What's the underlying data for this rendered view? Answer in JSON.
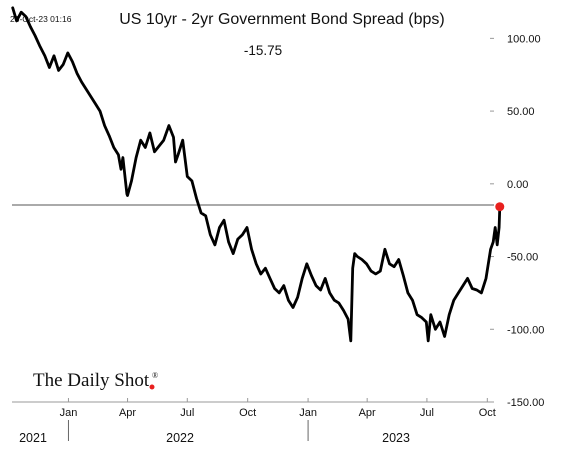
{
  "header": {
    "timestamp": "23-Oct-23 01:16",
    "title": "US 10yr - 2yr Government Bond Spread (bps)",
    "current_value": "-15.75"
  },
  "branding": {
    "logo_text": "The Daily Shot",
    "logo_mark": "®"
  },
  "colors": {
    "line": "#000000",
    "last_point": "#e8201e",
    "zero_line": "#555555",
    "axis": "#999999"
  },
  "chart_data": {
    "type": "line",
    "title": "US 10yr - 2yr Government Bond Spread (bps)",
    "ylim": [
      -150,
      125
    ],
    "y_ticks": [
      100,
      50,
      0,
      -50,
      -100,
      -150
    ],
    "y_tick_labels": [
      "100.00",
      "50.00",
      "0.00",
      "-50.00",
      "-100.00",
      "-150.00"
    ],
    "x_ticks": [
      {
        "label": "Jan",
        "date": "2022-01-01"
      },
      {
        "label": "Apr",
        "date": "2022-04-01"
      },
      {
        "label": "Jul",
        "date": "2022-07-01"
      },
      {
        "label": "Oct",
        "date": "2022-10-01"
      },
      {
        "label": "Jan",
        "date": "2023-01-01"
      },
      {
        "label": "Apr",
        "date": "2023-04-01"
      },
      {
        "label": "Jul",
        "date": "2023-07-01"
      },
      {
        "label": "Oct",
        "date": "2023-10-01"
      }
    ],
    "year_labels": [
      {
        "label": "2021",
        "date": "2021-11-08"
      },
      {
        "label": "2022",
        "date": "2022-06-20"
      },
      {
        "label": "2023",
        "date": "2023-05-15"
      }
    ],
    "year_separators": [
      "2022-01-01",
      "2023-01-01"
    ],
    "grid": false,
    "reference_line": 0,
    "series": [
      {
        "x": [
          "2021-10-08",
          "2021-10-14",
          "2021-10-21",
          "2021-10-28",
          "2021-11-04",
          "2021-11-11",
          "2021-11-18",
          "2021-11-26",
          "2021-12-03",
          "2021-12-10",
          "2021-12-17",
          "2021-12-24",
          "2021-12-31",
          "2022-01-07",
          "2022-01-14",
          "2022-01-21",
          "2022-01-28",
          "2022-02-04",
          "2022-02-11",
          "2022-02-18",
          "2022-02-25",
          "2022-03-04",
          "2022-03-11",
          "2022-03-18",
          "2022-03-22",
          "2022-03-25",
          "2022-03-31",
          "2022-04-01",
          "2022-04-07",
          "2022-04-14",
          "2022-04-21",
          "2022-04-28",
          "2022-05-05",
          "2022-05-12",
          "2022-05-19",
          "2022-05-26",
          "2022-06-03",
          "2022-06-10",
          "2022-06-13",
          "2022-06-17",
          "2022-06-24",
          "2022-07-01",
          "2022-07-08",
          "2022-07-15",
          "2022-07-22",
          "2022-07-29",
          "2022-08-05",
          "2022-08-12",
          "2022-08-19",
          "2022-08-26",
          "2022-09-02",
          "2022-09-09",
          "2022-09-16",
          "2022-09-23",
          "2022-09-30",
          "2022-10-07",
          "2022-10-14",
          "2022-10-21",
          "2022-10-28",
          "2022-11-04",
          "2022-11-11",
          "2022-11-18",
          "2022-11-25",
          "2022-12-02",
          "2022-12-09",
          "2022-12-16",
          "2022-12-23",
          "2022-12-30",
          "2023-01-06",
          "2023-01-13",
          "2023-01-20",
          "2023-01-27",
          "2023-02-03",
          "2023-02-10",
          "2023-02-17",
          "2023-02-24",
          "2023-03-03",
          "2023-03-07",
          "2023-03-10",
          "2023-03-13",
          "2023-03-17",
          "2023-03-24",
          "2023-03-31",
          "2023-04-07",
          "2023-04-14",
          "2023-04-21",
          "2023-04-28",
          "2023-05-05",
          "2023-05-12",
          "2023-05-19",
          "2023-05-26",
          "2023-06-02",
          "2023-06-09",
          "2023-06-16",
          "2023-06-23",
          "2023-06-30",
          "2023-07-03",
          "2023-07-07",
          "2023-07-14",
          "2023-07-21",
          "2023-07-28",
          "2023-08-04",
          "2023-08-11",
          "2023-08-18",
          "2023-08-25",
          "2023-09-01",
          "2023-09-08",
          "2023-09-15",
          "2023-09-22",
          "2023-09-29",
          "2023-10-06",
          "2023-10-10",
          "2023-10-13",
          "2023-10-16",
          "2023-10-19",
          "2023-10-20"
        ],
        "values": [
          121,
          112,
          118,
          115,
          108,
          102,
          95,
          88,
          80,
          88,
          78,
          82,
          90,
          84,
          76,
          70,
          65,
          60,
          55,
          50,
          40,
          33,
          25,
          20,
          10,
          18,
          -7,
          -8,
          2,
          18,
          30,
          25,
          35,
          22,
          26,
          30,
          40,
          32,
          15,
          20,
          30,
          5,
          2,
          -10,
          -20,
          -22,
          -35,
          -42,
          -30,
          -25,
          -40,
          -48,
          -38,
          -35,
          -30,
          -45,
          -55,
          -62,
          -58,
          -65,
          -72,
          -75,
          -70,
          -80,
          -85,
          -78,
          -65,
          -55,
          -63,
          -70,
          -73,
          -65,
          -75,
          -80,
          -82,
          -87,
          -93,
          -108,
          -58,
          -48,
          -50,
          -52,
          -55,
          -60,
          -62,
          -60,
          -45,
          -55,
          -57,
          -52,
          -63,
          -75,
          -80,
          -90,
          -92,
          -95,
          -108,
          -90,
          -100,
          -95,
          -105,
          -90,
          -80,
          -75,
          -70,
          -65,
          -72,
          -73,
          -75,
          -65,
          -45,
          -40,
          -30,
          -42,
          -30,
          -15.75
        ]
      }
    ],
    "last_value": -15.75
  }
}
